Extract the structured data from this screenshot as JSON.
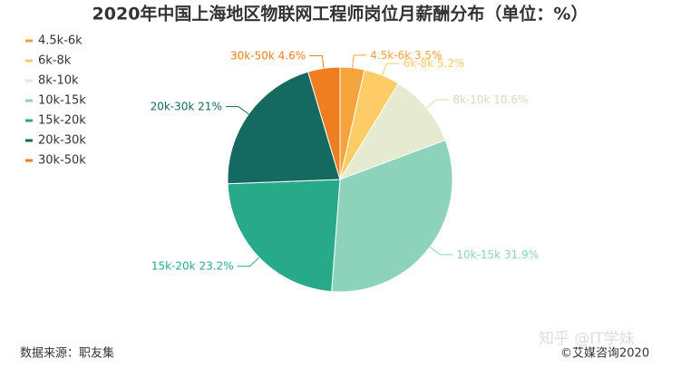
{
  "chart_data": {
    "type": "pie",
    "title": "2020年中国上海地区物联网工程师岗位月薪酬分布（单位：%）",
    "categories": [
      "4.5k-6k",
      "6k-8k",
      "8k-10k",
      "10k-15k",
      "15k-20k",
      "20k-30k",
      "30k-50k"
    ],
    "values": [
      3.5,
      5.2,
      10.6,
      31.9,
      23.2,
      21,
      4.6
    ],
    "value_labels": [
      "3.5%",
      "5.2%",
      "10.6%",
      "31.9%",
      "23.2%",
      "21%",
      "4.6%"
    ],
    "colors": [
      "#f5a33c",
      "#fdcc66",
      "#e5ead0",
      "#8dd3bc",
      "#27a98a",
      "#146a60",
      "#f07d1f"
    ],
    "legend": "top-left",
    "source": "数据来源：职友集",
    "copyright": "©艾媒咨询2020",
    "watermark": "知乎 @IT学妹"
  }
}
